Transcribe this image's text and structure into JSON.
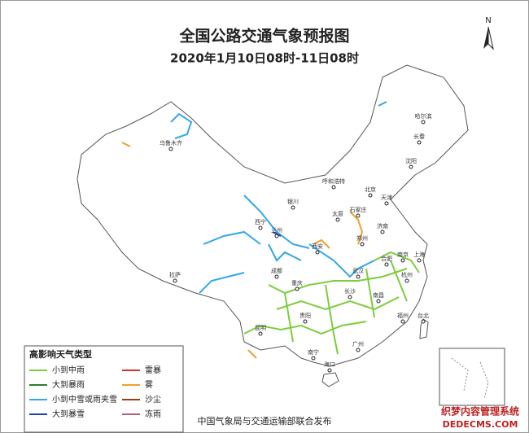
{
  "header": {
    "title": "全国公路交通气象预报图",
    "subtitle": "2020年1月10日08时-11日08时",
    "north": "N"
  },
  "legend": {
    "title": "高影响天气类型",
    "items": [
      {
        "label": "小到中雨",
        "color": "#7ccd3c"
      },
      {
        "label": "大到暴雨",
        "color": "#2e7d32"
      },
      {
        "label": "小到中雪或雨夹雪",
        "color": "#33a7e8"
      },
      {
        "label": "大到暴雪",
        "color": "#1f3fbf"
      },
      {
        "label": "雷暴",
        "color": "#d32f2f"
      },
      {
        "label": "雾",
        "color": "#f0a030"
      },
      {
        "label": "沙尘",
        "color": "#8b4513"
      },
      {
        "label": "冻雨",
        "color": "#b0607a"
      }
    ]
  },
  "cities": [
    "乌鲁木齐",
    "哈尔滨",
    "长春",
    "沈阳",
    "呼和浩特",
    "北京",
    "天津",
    "石家庄",
    "太原",
    "银川",
    "西宁",
    "兰州",
    "济南",
    "郑州",
    "西安",
    "拉萨",
    "成都",
    "重庆",
    "武汉",
    "合肥",
    "南京",
    "上海",
    "杭州",
    "长沙",
    "南昌",
    "贵阳",
    "昆明",
    "南宁",
    "广州",
    "福州",
    "台北",
    "海口"
  ],
  "footer": "中国气象局与交通运输部联合发布",
  "watermark": {
    "line1": "织梦内容管理系统",
    "line2": "DEDECMS.COM"
  }
}
